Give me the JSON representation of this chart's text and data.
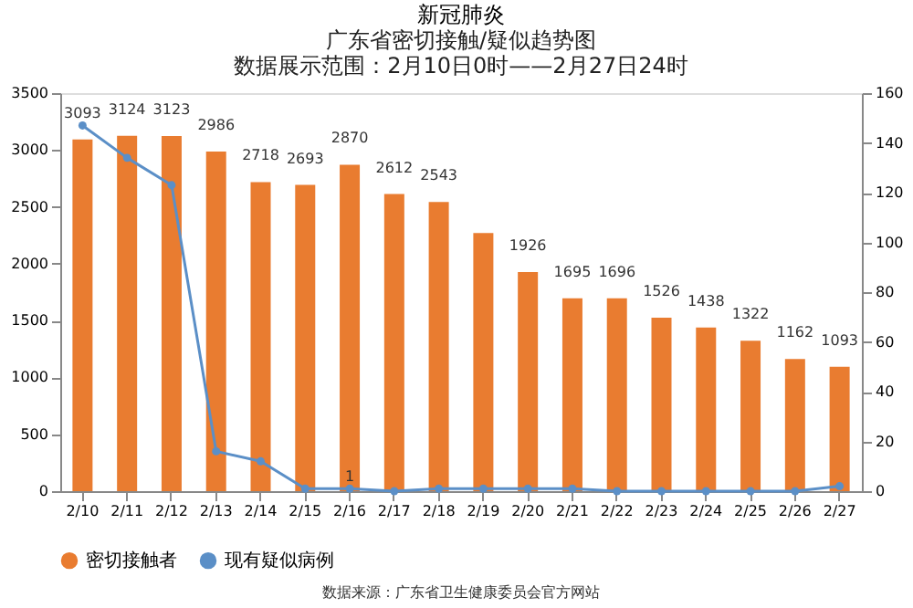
{
  "chart_data": {
    "type": "bar",
    "title": "新冠肺炎",
    "subtitle": "广东省密切接触/疑似趋势图",
    "categories": [
      "2/10",
      "2/11",
      "2/12",
      "2/13",
      "2/14",
      "2/15",
      "2/16",
      "2/17",
      "2/18",
      "2/19",
      "2/20",
      "2/21",
      "2/22",
      "2/23",
      "2/24",
      "2/25",
      "2/26",
      "2/27"
    ],
    "series": [
      {
        "name": "密切接触者",
        "color": "#e97c30",
        "values": [
          3093,
          3124,
          3123,
          2986,
          2718,
          2693,
          2870,
          2612,
          2543,
          2270,
          1926,
          1695,
          1696,
          1526,
          1438,
          1322,
          1162,
          1093
        ],
        "value_labels": [
          "3093",
          "3124",
          "3123",
          "2986",
          "2718",
          "2693",
          "2870",
          "2612",
          "2543",
          null,
          "1926",
          "1695",
          "1696",
          "1526",
          "1438",
          "1322",
          "1162",
          "1093"
        ]
      },
      {
        "name": "现有疑似病例",
        "type": "line",
        "axis": "y2",
        "color": "#5b8fc7",
        "marker": "circle",
        "values": [
          147,
          134,
          123,
          16,
          12,
          1,
          1,
          0,
          1,
          1,
          1,
          1,
          0,
          0,
          0,
          0,
          0,
          2
        ],
        "value_labels": [
          null,
          null,
          null,
          null,
          null,
          null,
          "1",
          null,
          null,
          null,
          null,
          null,
          null,
          null,
          null,
          null,
          null,
          null
        ]
      }
    ],
    "ylim": [
      0,
      3500
    ],
    "yticks": [
      0,
      500,
      1000,
      1500,
      2000,
      2500,
      3000,
      3500
    ],
    "y2lim": [
      0,
      160
    ],
    "y2ticks": [
      0,
      20,
      40,
      60,
      80,
      100,
      120,
      140,
      160
    ],
    "grid": false,
    "legend": "bottom",
    "annotations": [
      "数据展示范围：2月10日0时——2月27日24时",
      "数据来源：广东省卫生健康委员会官方网站"
    ]
  }
}
